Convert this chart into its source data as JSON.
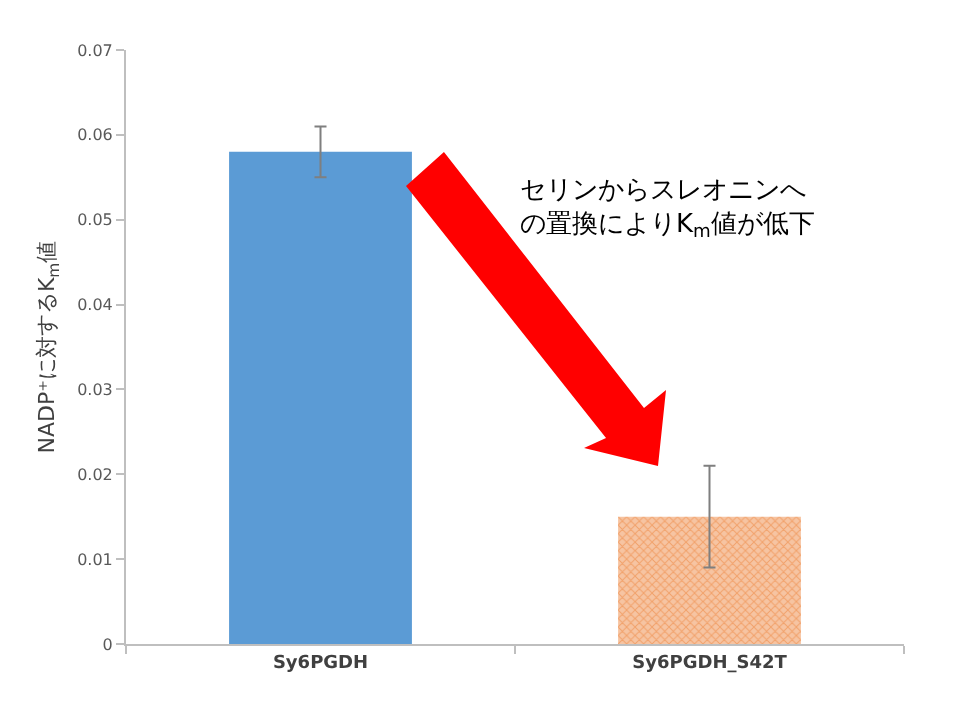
{
  "chart_data": {
    "type": "bar",
    "ylabel": "NADP⁺に対するK$_{m}$値",
    "categories": [
      "Sy6PGDH",
      "Sy6PGDH_S42T"
    ],
    "values": [
      0.058,
      0.015
    ],
    "errors": [
      0.003,
      0.006
    ],
    "colors": [
      "#5b9bd5",
      "#ed7d31"
    ],
    "ylim": [
      0,
      0.07
    ],
    "yticks": [
      0,
      0.01,
      0.02,
      0.03,
      0.04,
      0.05,
      0.06,
      0.07
    ],
    "annotations": [
      "セリンからスレオニンへの置換によりK$_{m}$値が低下"
    ]
  }
}
